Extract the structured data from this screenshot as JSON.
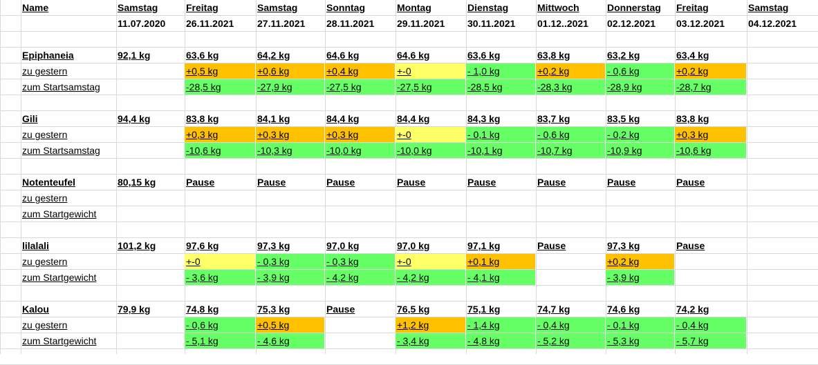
{
  "colors": {
    "orange": "#ffc000",
    "yellow": "#ffff66",
    "green": "#66ff66",
    "grid": "#d9d9d9"
  },
  "header": {
    "name_label": "Name",
    "days": [
      "Samstag",
      "Freitag",
      "Samstag",
      "Sonntag",
      "Montag",
      "Dienstag",
      "Mittwoch",
      "Donnerstag",
      "Freitag",
      "Samstag"
    ],
    "dates": [
      "11.07.2020",
      "26.11.2021",
      "27.11.2021",
      "28.11.2021",
      "29.11.2021",
      "30.11.2021",
      "01.12..2021",
      "02.12.2021",
      "03.12.2021",
      "04.12.2021"
    ]
  },
  "people": [
    {
      "name": "Epiphaneia",
      "row2_label": "zu gestern",
      "row3_label": "zum Startsamstag",
      "weights": [
        "92,1 kg",
        "63,6 kg",
        "64,2 kg",
        "64,6 kg",
        "64,6 kg",
        "63,6 kg",
        "63,8 kg",
        "63,2 kg",
        "63,4 kg",
        ""
      ],
      "diff_prev": [
        [
          "",
          ""
        ],
        [
          "+0,5 kg",
          "orange"
        ],
        [
          "+0,6 kg",
          "orange"
        ],
        [
          "+0,4 kg",
          "orange"
        ],
        [
          "+-0",
          "yellow"
        ],
        [
          "- 1,0 kg",
          "green"
        ],
        [
          "+0,2 kg",
          "orange"
        ],
        [
          "- 0,6 kg",
          "green"
        ],
        [
          "+0,2 kg",
          "orange"
        ],
        [
          "",
          ""
        ]
      ],
      "diff_start": [
        [
          "",
          ""
        ],
        [
          "-28,5 kg",
          "green"
        ],
        [
          "-27,9 kg",
          "green"
        ],
        [
          "-27,5 kg",
          "green"
        ],
        [
          "-27,5 kg",
          "green"
        ],
        [
          "-28,5 kg",
          "green"
        ],
        [
          "-28,3 kg",
          "green"
        ],
        [
          "-28,9 kg",
          "green"
        ],
        [
          "-28,7 kg",
          "green"
        ],
        [
          "",
          ""
        ]
      ]
    },
    {
      "name": "Gili",
      "row2_label": "zu gestern",
      "row3_label": "zum Startsamstag",
      "weights": [
        "94,4 kg",
        "83,8 kg",
        "84,1 kg",
        "84,4 kg",
        "84,4 kg",
        "84,3 kg",
        "83,7 kg",
        "83,5 kg",
        "83,8 kg",
        ""
      ],
      "diff_prev": [
        [
          "",
          ""
        ],
        [
          "+0,3 kg",
          "orange"
        ],
        [
          "+0,3 kg",
          "orange"
        ],
        [
          "+0,3 kg",
          "orange"
        ],
        [
          "+-0",
          "yellow"
        ],
        [
          "- 0,1 kg",
          "green"
        ],
        [
          "- 0,6 kg",
          "green"
        ],
        [
          "- 0,2 kg",
          "green"
        ],
        [
          "+0,3 kg",
          "orange"
        ],
        [
          "",
          ""
        ]
      ],
      "diff_start": [
        [
          "",
          ""
        ],
        [
          "-10,6 kg",
          "green"
        ],
        [
          "-10,3 kg",
          "green"
        ],
        [
          "-10,0 kg",
          "green"
        ],
        [
          "-10,0 kg",
          "green"
        ],
        [
          "-10,1 kg",
          "green"
        ],
        [
          "-10,7 kg",
          "green"
        ],
        [
          "-10,9 kg",
          "green"
        ],
        [
          "-10,6 kg",
          "green"
        ],
        [
          "",
          ""
        ]
      ]
    },
    {
      "name": "Notenteufel",
      "row2_label": "zu gestern",
      "row3_label": "zum Startgewicht",
      "weights": [
        "80,15 kg",
        "Pause",
        "Pause",
        "Pause",
        "Pause",
        "Pause",
        "Pause",
        "Pause",
        "Pause",
        ""
      ],
      "diff_prev": [
        [
          "",
          ""
        ],
        [
          "",
          ""
        ],
        [
          "",
          ""
        ],
        [
          "",
          ""
        ],
        [
          "",
          ""
        ],
        [
          "",
          ""
        ],
        [
          "",
          ""
        ],
        [
          "",
          ""
        ],
        [
          "",
          ""
        ],
        [
          "",
          ""
        ]
      ],
      "diff_start": [
        [
          "",
          ""
        ],
        [
          "",
          ""
        ],
        [
          "",
          ""
        ],
        [
          "",
          ""
        ],
        [
          "",
          ""
        ],
        [
          "",
          ""
        ],
        [
          "",
          ""
        ],
        [
          "",
          ""
        ],
        [
          "",
          ""
        ],
        [
          "",
          ""
        ]
      ]
    },
    {
      "name": "lilalali",
      "row2_label": "zu gestern",
      "row3_label": "zum Startgewicht",
      "weights": [
        "101,2 kg",
        "97,6 kg",
        "97,3 kg",
        "97,0 kg",
        "97,0 kg",
        "97,1 kg",
        "Pause",
        "97,3 kg",
        "Pause",
        ""
      ],
      "diff_prev": [
        [
          "",
          ""
        ],
        [
          "+-0",
          "yellow"
        ],
        [
          "- 0,3 kg",
          "green"
        ],
        [
          "- 0,3 kg",
          "green"
        ],
        [
          "+-0",
          "yellow"
        ],
        [
          "+0,1 kg",
          "orange"
        ],
        [
          "",
          ""
        ],
        [
          "+0,2 kg",
          "orange"
        ],
        [
          "",
          ""
        ],
        [
          "",
          ""
        ]
      ],
      "diff_start": [
        [
          "",
          ""
        ],
        [
          "- 3,6 kg",
          "green"
        ],
        [
          "- 3,9 kg",
          "green"
        ],
        [
          "- 4,2 kg",
          "green"
        ],
        [
          "- 4,2 kg",
          "green"
        ],
        [
          "- 4,1 kg",
          "green"
        ],
        [
          "",
          ""
        ],
        [
          "- 3,9 kg",
          "green"
        ],
        [
          "",
          ""
        ],
        [
          "",
          ""
        ]
      ]
    },
    {
      "name": "Kalou",
      "row2_label": "zu gestern",
      "row3_label": "zum Startgewicht",
      "weights": [
        "79,9 kg",
        "74,8 kg",
        "75,3 kg",
        "Pause",
        "76,5 kg",
        "75,1 kg",
        "74,7 kg",
        "74,6 kg",
        "74,2 kg",
        ""
      ],
      "diff_prev": [
        [
          "",
          ""
        ],
        [
          "- 0,6 kg",
          "green"
        ],
        [
          "+0,5 kg",
          "orange"
        ],
        [
          "",
          ""
        ],
        [
          "+1,2 kg",
          "orange"
        ],
        [
          "- 1,4 kg",
          "green"
        ],
        [
          "- 0,4 kg",
          "green"
        ],
        [
          "- 0,1 kg",
          "green"
        ],
        [
          "- 0,4 kg",
          "green"
        ],
        [
          "",
          ""
        ]
      ],
      "diff_start": [
        [
          "",
          ""
        ],
        [
          "- 5,1 kg",
          "green"
        ],
        [
          "- 4,6 kg",
          "green"
        ],
        [
          "",
          ""
        ],
        [
          "- 3,4 kg",
          "green"
        ],
        [
          "- 4,8 kg",
          "green"
        ],
        [
          "- 5,2 kg",
          "green"
        ],
        [
          "- 5,3 kg",
          "green"
        ],
        [
          "- 5,7 kg",
          "green"
        ],
        [
          "",
          ""
        ]
      ]
    }
  ]
}
